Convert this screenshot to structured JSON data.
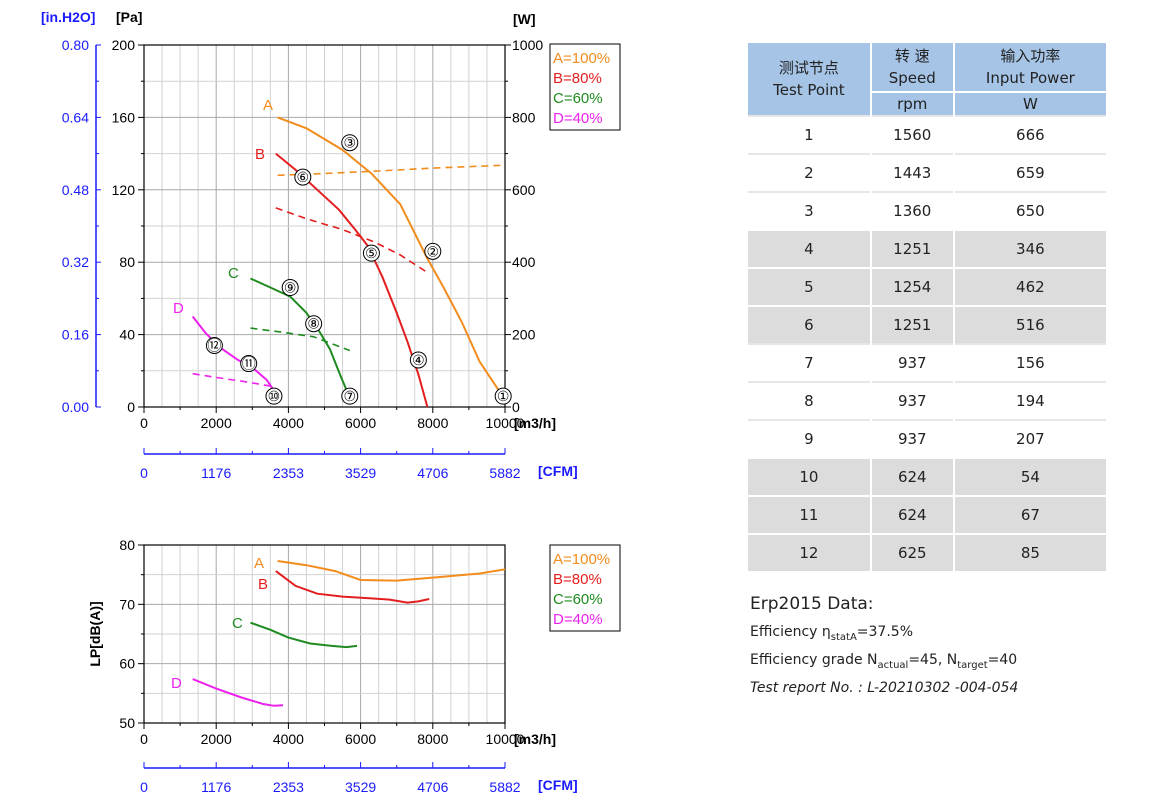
{
  "chart_data": [
    {
      "type": "line",
      "x_unit": "[m3/h]",
      "x_ticks": [
        "0",
        "2000",
        "4000",
        "6000",
        "8000",
        "10000"
      ],
      "xlim": [
        0,
        10000
      ],
      "x2_unit": "[CFM]",
      "x2_ticks": [
        "0",
        "1176",
        "2353",
        "3529",
        "4706",
        "5882"
      ],
      "y_left_unit": "[Pa]",
      "y_left_ticks": [
        "0",
        "40",
        "80",
        "120",
        "160",
        "200"
      ],
      "ylim_left": [
        0,
        200
      ],
      "y_far_unit": "[in.H2O]",
      "y_far_ticks": [
        "0.00",
        "0.16",
        "0.32",
        "0.48",
        "0.64",
        "0.80"
      ],
      "y_right_unit": "[W]",
      "y_right_ticks": [
        "0",
        "200",
        "400",
        "600",
        "800",
        "1000"
      ],
      "ylim_right": [
        0,
        1000
      ],
      "grid": true,
      "legend": [
        "A=100%",
        "B=80%",
        "C=60%",
        "D=40%"
      ],
      "legend_position": "right",
      "series_colors": {
        "A": "#f28c1c",
        "B": "#e41e1e",
        "C": "#1f8a1f",
        "D": "#ee22ee"
      },
      "pressure_series": [
        {
          "label": "A",
          "points": [
            [
              3700,
              160
            ],
            [
              4500,
              154
            ],
            [
              5500,
              142
            ],
            [
              6300,
              129
            ],
            [
              7100,
              112
            ],
            [
              7850,
              82
            ],
            [
              8300,
              66
            ],
            [
              8800,
              47
            ],
            [
              9300,
              25
            ],
            [
              9900,
              7
            ]
          ]
        },
        {
          "label": "B",
          "points": [
            [
              3650,
              140
            ],
            [
              4200,
              131
            ],
            [
              4800,
              120
            ],
            [
              5400,
              109
            ],
            [
              5850,
              98
            ],
            [
              6200,
              89
            ],
            [
              6600,
              72
            ],
            [
              7000,
              52
            ],
            [
              7300,
              36
            ],
            [
              7600,
              18
            ],
            [
              7850,
              0
            ]
          ]
        },
        {
          "label": "C",
          "points": [
            [
              2950,
              71
            ],
            [
              3500,
              66
            ],
            [
              4050,
              61
            ],
            [
              4500,
              52
            ],
            [
              4850,
              42
            ],
            [
              5150,
              32
            ],
            [
              5450,
              17
            ],
            [
              5700,
              5
            ]
          ]
        },
        {
          "label": "D",
          "points": [
            [
              1350,
              50
            ],
            [
              1700,
              41
            ],
            [
              2100,
              33
            ],
            [
              2600,
              26
            ],
            [
              3050,
              21
            ],
            [
              3400,
              15
            ],
            [
              3600,
              9
            ],
            [
              3750,
              3
            ]
          ]
        }
      ],
      "power_series": [
        {
          "label": "A",
          "points": [
            [
              3700,
              640
            ],
            [
              5000,
              645
            ],
            [
              6500,
              652
            ],
            [
              8000,
              660
            ],
            [
              10000,
              668
            ]
          ]
        },
        {
          "label": "B",
          "points": [
            [
              3650,
              550
            ],
            [
              4500,
              520
            ],
            [
              5500,
              490
            ],
            [
              6400,
              455
            ],
            [
              7100,
              420
            ],
            [
              7800,
              375
            ]
          ]
        },
        {
          "label": "C",
          "points": [
            [
              2950,
              218
            ],
            [
              3800,
              207
            ],
            [
              4700,
              194
            ],
            [
              5700,
              156
            ]
          ]
        },
        {
          "label": "D",
          "points": [
            [
              1350,
              92
            ],
            [
              2100,
              80
            ],
            [
              2800,
              70
            ],
            [
              3600,
              56
            ]
          ]
        }
      ],
      "markers": [
        {
          "id": "①",
          "x": 9950,
          "y": 6
        },
        {
          "id": "②",
          "x": 8000,
          "y": 86
        },
        {
          "id": "③",
          "x": 5700,
          "y": 146
        },
        {
          "id": "④",
          "x": 7600,
          "y": 26
        },
        {
          "id": "⑤",
          "x": 6300,
          "y": 85
        },
        {
          "id": "⑥",
          "x": 4400,
          "y": 127
        },
        {
          "id": "⑦",
          "x": 5700,
          "y": 6
        },
        {
          "id": "⑧",
          "x": 4700,
          "y": 46
        },
        {
          "id": "⑨",
          "x": 4050,
          "y": 66
        },
        {
          "id": "⑩",
          "x": 3600,
          "y": 6
        },
        {
          "id": "⑪",
          "x": 2900,
          "y": 24
        },
        {
          "id": "⑫",
          "x": 1950,
          "y": 34
        }
      ]
    },
    {
      "type": "line",
      "y_label": "LP[dB(A)]",
      "x_unit": "[m3/h]",
      "x_ticks": [
        "0",
        "2000",
        "4000",
        "6000",
        "8000",
        "10000"
      ],
      "xlim": [
        0,
        10000
      ],
      "x2_unit": "[CFM]",
      "x2_ticks": [
        "0",
        "1176",
        "2353",
        "3529",
        "4706",
        "5882"
      ],
      "y_ticks": [
        "50",
        "60",
        "70",
        "80"
      ],
      "ylim": [
        50,
        80
      ],
      "grid": true,
      "legend": [
        "A=100%",
        "B=80%",
        "C=60%",
        "D=40%"
      ],
      "legend_position": "right",
      "series": [
        {
          "label": "A",
          "points": [
            [
              3700,
              77.3
            ],
            [
              4500,
              76.6
            ],
            [
              5300,
              75.6
            ],
            [
              6000,
              74.1
            ],
            [
              7000,
              74.0
            ],
            [
              8200,
              74.6
            ],
            [
              9300,
              75.2
            ],
            [
              10000,
              75.9
            ]
          ]
        },
        {
          "label": "B",
          "points": [
            [
              3650,
              75.6
            ],
            [
              4200,
              73.1
            ],
            [
              4800,
              71.8
            ],
            [
              5500,
              71.3
            ],
            [
              6300,
              71.0
            ],
            [
              6800,
              70.8
            ],
            [
              7300,
              70.3
            ],
            [
              7600,
              70.5
            ],
            [
              7900,
              70.9
            ]
          ]
        },
        {
          "label": "C",
          "points": [
            [
              2950,
              66.9
            ],
            [
              3500,
              65.7
            ],
            [
              4000,
              64.4
            ],
            [
              4600,
              63.4
            ],
            [
              5200,
              63.0
            ],
            [
              5600,
              62.8
            ],
            [
              5900,
              63.0
            ]
          ]
        },
        {
          "label": "D",
          "points": [
            [
              1350,
              57.4
            ],
            [
              2000,
              55.8
            ],
            [
              2700,
              54.3
            ],
            [
              3300,
              53.2
            ],
            [
              3600,
              52.9
            ],
            [
              3850,
              53.0
            ]
          ]
        }
      ]
    }
  ],
  "table": {
    "headers": [
      {
        "cn": "测试节点",
        "en": "Test Point",
        "unit": ""
      },
      {
        "cn": "转 速",
        "en": "Speed",
        "unit": "rpm"
      },
      {
        "cn": "输入功率",
        "en": "Input Power",
        "unit": "W"
      }
    ],
    "rows": [
      {
        "point": "1",
        "speed": "1560",
        "power": "666"
      },
      {
        "point": "2",
        "speed": "1443",
        "power": "659"
      },
      {
        "point": "3",
        "speed": "1360",
        "power": "650"
      },
      {
        "point": "4",
        "speed": "1251",
        "power": "346"
      },
      {
        "point": "5",
        "speed": "1254",
        "power": "462"
      },
      {
        "point": "6",
        "speed": "1251",
        "power": "516"
      },
      {
        "point": "7",
        "speed": "937",
        "power": "156"
      },
      {
        "point": "8",
        "speed": "937",
        "power": "194"
      },
      {
        "point": "9",
        "speed": "937",
        "power": "207"
      },
      {
        "point": "10",
        "speed": "624",
        "power": "54"
      },
      {
        "point": "11",
        "speed": "624",
        "power": "67"
      },
      {
        "point": "12",
        "speed": "625",
        "power": "85"
      }
    ]
  },
  "erp": {
    "title": "Erp2015 Data:",
    "efficiency_prefix": "Efficiency η",
    "efficiency_sub": "statA",
    "efficiency_value": "=37.5%",
    "grade_prefix": "Efficiency grade  N",
    "grade_actual_sub": "actual",
    "grade_actual_value": "=45, N",
    "grade_target_sub": "target",
    "grade_target_value": "=40",
    "report": "Test report No. : L-20210302 -004-054"
  }
}
